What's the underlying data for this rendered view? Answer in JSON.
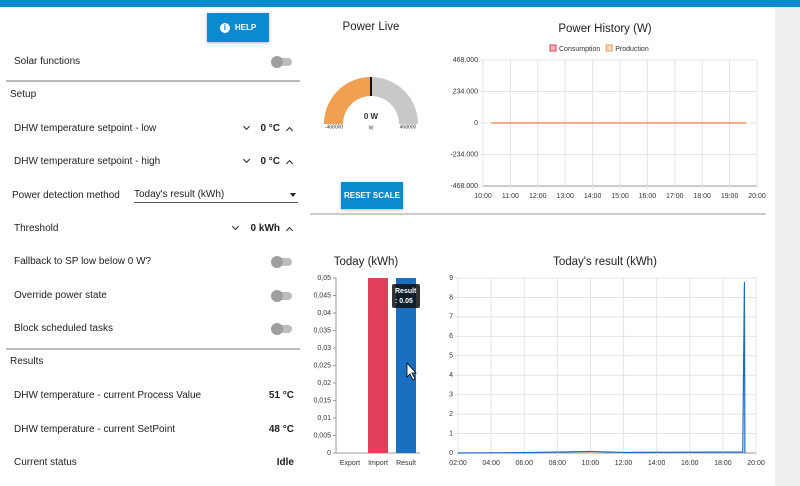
{
  "help_button": "HELP",
  "reset_button": "RESET SCALE",
  "settings": {
    "solar": "Solar functions",
    "setup": "Setup",
    "sp_low": {
      "label": "DHW temperature setpoint - low",
      "value": "0 °C"
    },
    "sp_high": {
      "label": "DHW temperature setpoint - high",
      "value": "0 °C"
    },
    "method": {
      "label": "Power detection method",
      "value": "Today's result (kWh)"
    },
    "threshold": {
      "label": "Threshold",
      "value": "0 kWh"
    },
    "fallback": "Fallback to SP low below 0 W?",
    "override": "Override power state",
    "block": "Block scheduled tasks",
    "results": "Results",
    "pv": {
      "label": "DHW temperature - current Process Value",
      "value": "51 °C"
    },
    "sp": {
      "label": "DHW temperature - current SetPoint",
      "value": "48 °C"
    },
    "status": {
      "label": "Current status",
      "value": "Idle"
    }
  },
  "chart_data": [
    {
      "type": "gauge",
      "title": "Power Live",
      "values": [
        0
      ],
      "value_labels": [
        "0 W"
      ],
      "unit": "W",
      "range": [
        -468000,
        468000
      ],
      "color": "#f0a050",
      "track_color": "#c8c8c8"
    },
    {
      "type": "line",
      "title": "Power History (W)",
      "x": [
        10.3,
        11,
        12,
        13,
        14,
        15,
        16,
        17,
        18,
        19,
        19.6
      ],
      "series": [
        {
          "name": "Consumption",
          "color": "#e0405a",
          "values": [
            0,
            0,
            0,
            0,
            0,
            0,
            0,
            0,
            0,
            0,
            0
          ]
        },
        {
          "name": "Production",
          "color": "#f0a050",
          "values": [
            0,
            0,
            0,
            0,
            0,
            0,
            0,
            0,
            0,
            0,
            0
          ]
        }
      ],
      "xlim": [
        10,
        20
      ],
      "xticks": [
        {
          "value": 10,
          "label": "10:00"
        },
        {
          "value": 11,
          "label": "11:00"
        },
        {
          "value": 12,
          "label": "12:00"
        },
        {
          "value": 13,
          "label": "13:00"
        },
        {
          "value": 14,
          "label": "14:00"
        },
        {
          "value": 15,
          "label": "15:00"
        },
        {
          "value": 16,
          "label": "16:00"
        },
        {
          "value": 17,
          "label": "17:00"
        },
        {
          "value": 18,
          "label": "18:00"
        },
        {
          "value": 19,
          "label": "19:00"
        },
        {
          "value": 20,
          "label": "20:00"
        }
      ],
      "ylim": [
        -468000,
        468000
      ],
      "yticks": [
        {
          "value": 468000,
          "label": "468.000"
        },
        {
          "value": 234000,
          "label": "234.000"
        },
        0,
        {
          "value": -234000,
          "label": "-234.000"
        },
        {
          "value": -468000,
          "label": "-468.000"
        }
      ],
      "grid": true,
      "legend": "top"
    },
    {
      "type": "bar",
      "title": "Today (kWh)",
      "categories": [
        "Export",
        "Import",
        "Result"
      ],
      "values": [
        0,
        0.05,
        0.05
      ],
      "colors": [
        "#1a6fc0",
        "#e0405a",
        "#1a6fc0"
      ],
      "ylim": [
        0,
        0.05
      ],
      "yticks": [
        0,
        {
          "value": 0.005,
          "label": "0,005"
        },
        {
          "value": 0.01,
          "label": "0,01"
        },
        {
          "value": 0.015,
          "label": "0,015"
        },
        {
          "value": 0.02,
          "label": "0,02"
        },
        {
          "value": 0.025,
          "label": "0,025"
        },
        {
          "value": 0.03,
          "label": "0,03"
        },
        {
          "value": 0.035,
          "label": "0,035"
        },
        {
          "value": 0.04,
          "label": "0,04"
        },
        {
          "value": 0.045,
          "label": "0,045"
        },
        {
          "value": 0.05,
          "label": "0,05"
        }
      ],
      "tooltip": {
        "title": "Result",
        "text": ": 0.05"
      }
    },
    {
      "type": "line",
      "title": "Today's result (kWh)",
      "x": [
        2,
        6,
        10,
        12,
        19.2,
        19.3,
        19.33
      ],
      "series": [
        {
          "name": "Result",
          "color": "#1a6fc0",
          "values": [
            0,
            0.02,
            0.08,
            0.03,
            0.05,
            8.8,
            0
          ]
        }
      ],
      "xlim": [
        2,
        20
      ],
      "xticks": [
        {
          "value": 2,
          "label": "02:00"
        },
        {
          "value": 4,
          "label": "04:00"
        },
        {
          "value": 6,
          "label": "06:00"
        },
        {
          "value": 8,
          "label": "08:00"
        },
        {
          "value": 10,
          "label": "10:00"
        },
        {
          "value": 12,
          "label": "12:00"
        },
        {
          "value": 14,
          "label": "14:00"
        },
        {
          "value": 16,
          "label": "16:00"
        },
        {
          "value": 18,
          "label": "18:00"
        },
        {
          "value": 20,
          "label": "20:00"
        }
      ],
      "ylim": [
        0,
        9
      ],
      "yticks": [
        0,
        1,
        2,
        3,
        4,
        5,
        6,
        7,
        8,
        9
      ],
      "grid": true
    }
  ]
}
